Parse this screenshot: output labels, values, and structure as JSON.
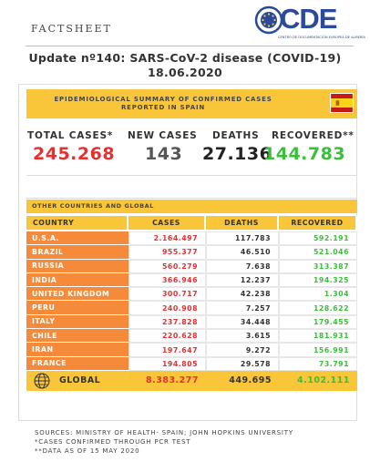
{
  "header": {
    "factsheet": "FACTSHEET",
    "logo_text": "CDE",
    "logo_sub": "CENTRO DE DOCUMENTACIÓN EUROPEA DE ALMERÍA",
    "title_line1": "Update nº140: SARS-CoV-2 disease (COVID-19)",
    "title_line2": "18.06.2020"
  },
  "spain": {
    "banner_line1": "EPIDEMIOLOGICAL SUMMARY OF CONFIRMED CASES",
    "banner_line2": "REPORTED IN SPAIN",
    "total_label": "TOTAL CASES*",
    "total_value": "245.268",
    "new_label": "NEW CASES",
    "new_value": "143",
    "deaths_label": "DEATHS",
    "deaths_value": "27.136",
    "recovered_label": "RECOVERED**",
    "recovered_value": "144.783"
  },
  "global_section": {
    "heading": "OTHER COUNTRIES AND GLOBAL",
    "columns": [
      "COUNTRY",
      "CASES",
      "DEATHS",
      "RECOVERED"
    ],
    "rows": [
      {
        "country": "U.S.A.",
        "cases": "2.164.497",
        "deaths": "117.783",
        "recovered": "592.191"
      },
      {
        "country": "BRAZIL",
        "cases": "955.377",
        "deaths": "46.510",
        "recovered": "521.046"
      },
      {
        "country": "RUSSIA",
        "cases": "560.279",
        "deaths": "7.638",
        "recovered": "313.387"
      },
      {
        "country": "INDIA",
        "cases": "366.946",
        "deaths": "12.237",
        "recovered": "194.325"
      },
      {
        "country": "UNITED KINGDOM",
        "cases": "300.717",
        "deaths": "42.238",
        "recovered": "1.304"
      },
      {
        "country": "PERU",
        "cases": "240.908",
        "deaths": "7.257",
        "recovered": "128.622"
      },
      {
        "country": "ITALY",
        "cases": "237.828",
        "deaths": "34.448",
        "recovered": "179.455"
      },
      {
        "country": "CHILE",
        "cases": "220.628",
        "deaths": "3.615",
        "recovered": "181.931"
      },
      {
        "country": "IRAN",
        "cases": "197.647",
        "deaths": "9.272",
        "recovered": "156.991"
      },
      {
        "country": "FRANCE",
        "cases": "194.805",
        "deaths": "29.578",
        "recovered": "73.791"
      }
    ],
    "global": {
      "label": "GLOBAL",
      "cases": "8.383.277",
      "deaths": "449.695",
      "recovered": "4.102.111"
    }
  },
  "footer": {
    "sources": "SOURCES: MINISTRY OF HEALTH- SPAIN; JOHN HOPKINS UNIVERSITY",
    "note1": "*CASES CONFIRMED THROUGH PCR TEST",
    "note2": "**DATA AS OF 15 MAY 2020"
  },
  "colors": {
    "banner": "#f9c63a",
    "country_cell": "#f58a3b",
    "cases": "#e53030",
    "recovered": "#3bbf3b",
    "logo": "#2a4a9a"
  },
  "icons": [
    "eu-stars-globe-icon",
    "spain-flag-icon",
    "globe-icon"
  ]
}
